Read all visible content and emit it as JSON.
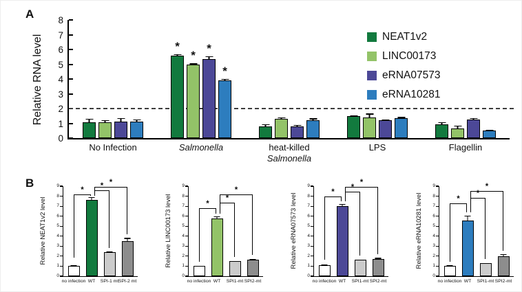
{
  "panels": {
    "a_label": "A",
    "b_label": "B"
  },
  "chart_data": [
    {
      "type": "bar",
      "panel": "A",
      "title": "",
      "xlabel": "",
      "ylabel": "Relative RNA level",
      "ylim": [
        0,
        8
      ],
      "yticks": [
        0,
        1,
        2,
        3,
        4,
        5,
        6,
        7,
        8
      ],
      "dashed_reference_line_y": 2,
      "grid": false,
      "legend_position": "upper right",
      "categories": [
        "No Infection",
        "Salmonella",
        "heat-killed Salmonella",
        "LPS",
        "Flagellin"
      ],
      "category_labels": [
        [
          {
            "text": "No Infection",
            "italic": false
          }
        ],
        [
          {
            "text": "Salmonella",
            "italic": true
          }
        ],
        [
          {
            "text": "heat-killed",
            "italic": false
          },
          {
            "text": "Salmonella",
            "italic": true
          }
        ],
        [
          {
            "text": "LPS",
            "italic": false
          }
        ],
        [
          {
            "text": "Flagellin",
            "italic": false
          }
        ]
      ],
      "series": [
        {
          "name": "NEAT1v2",
          "color": "#127a3e",
          "values": [
            1.05,
            5.6,
            0.8,
            1.5,
            0.95
          ],
          "errors": [
            0.3,
            0.12,
            0.2,
            0.1,
            0.18
          ]
        },
        {
          "name": "LINC00173",
          "color": "#93c368",
          "values": [
            1.05,
            5.0,
            1.3,
            1.4,
            0.65
          ],
          "errors": [
            0.22,
            0.1,
            0.15,
            0.3,
            0.25
          ]
        },
        {
          "name": "eRNA07573",
          "color": "#4c4897",
          "values": [
            1.1,
            5.35,
            0.8,
            1.2,
            1.25
          ],
          "errors": [
            0.3,
            0.25,
            0.15,
            0.12,
            0.15
          ]
        },
        {
          "name": "eRNA10281",
          "color": "#2d7dbe",
          "values": [
            1.1,
            3.9,
            1.2,
            1.35,
            0.5
          ],
          "errors": [
            0.2,
            0.15,
            0.18,
            0.12,
            0.12
          ]
        }
      ],
      "significance": {
        "starred_category_index": 1,
        "marker": "*"
      }
    },
    {
      "type": "bar",
      "panel": "B",
      "ylabel": "Relative NEAT1v2 level",
      "ylim": [
        0,
        9
      ],
      "yticks": [
        0,
        1,
        2,
        3,
        4,
        5,
        6,
        7,
        8,
        9
      ],
      "categories": [
        "no infection",
        "WT",
        "SPI-1 mt",
        "SPI-2 mt"
      ],
      "values": [
        1.0,
        7.6,
        2.4,
        3.5
      ],
      "errors": [
        0.15,
        0.4,
        0.15,
        0.4
      ],
      "bar_colors": [
        "#ffffff",
        "#127a3e",
        "#cbcbcb",
        "#8d8d8d"
      ],
      "brackets": [
        {
          "from": 0,
          "to": 1,
          "level": 8.15,
          "from_drop": 1.9,
          "to_drop": 8.05,
          "marker": "*"
        },
        {
          "from": 1,
          "to": 2,
          "level": 8.6,
          "from_drop": 8.05,
          "to_drop": 2.85,
          "marker": "*"
        },
        {
          "from": 1,
          "to": 3,
          "level": 8.9,
          "from_drop": 8.05,
          "to_drop": 4.2,
          "marker": "*"
        }
      ]
    },
    {
      "type": "bar",
      "panel": "B",
      "ylabel": "Relative LINC00173 level",
      "ylim": [
        0,
        9
      ],
      "yticks": [
        0,
        1,
        2,
        3,
        4,
        5,
        6,
        7,
        8,
        9
      ],
      "categories": [
        "no infection",
        "WT",
        "SPI1-mt",
        "SPI2-mt"
      ],
      "values": [
        1.0,
        5.8,
        1.5,
        1.65
      ],
      "errors": [
        0.1,
        0.25,
        0.1,
        0.15
      ],
      "bar_colors": [
        "#ffffff",
        "#93c368",
        "#cbcbcb",
        "#8d8d8d"
      ],
      "brackets": [
        {
          "from": 0,
          "to": 1,
          "level": 6.8,
          "from_drop": 1.5,
          "to_drop": 6.3,
          "marker": "*"
        },
        {
          "from": 1,
          "to": 2,
          "level": 7.35,
          "from_drop": 6.3,
          "to_drop": 1.95,
          "marker": "*"
        },
        {
          "from": 1,
          "to": 3,
          "level": 8.15,
          "from_drop": 6.3,
          "to_drop": 2.15,
          "marker": "*"
        }
      ]
    },
    {
      "type": "bar",
      "panel": "B",
      "ylabel": "Relative eRNA07573 level",
      "ylim": [
        0,
        9
      ],
      "yticks": [
        0,
        1,
        2,
        3,
        4,
        5,
        6,
        7,
        8,
        9
      ],
      "categories": [
        "no infection",
        "WT",
        "SPI1-mt",
        "SPI2-mt"
      ],
      "values": [
        1.1,
        7.0,
        1.65,
        1.7
      ],
      "errors": [
        0.15,
        0.3,
        0.1,
        0.2
      ],
      "bar_colors": [
        "#ffffff",
        "#4c4897",
        "#cbcbcb",
        "#8d8d8d"
      ],
      "brackets": [
        {
          "from": 0,
          "to": 1,
          "level": 8.0,
          "from_drop": 1.65,
          "to_drop": 7.55,
          "marker": "*"
        },
        {
          "from": 1,
          "to": 2,
          "level": 8.45,
          "from_drop": 7.55,
          "to_drop": 2.1,
          "marker": "*"
        },
        {
          "from": 1,
          "to": 3,
          "level": 8.95,
          "from_drop": 7.55,
          "to_drop": 2.25,
          "marker": "*"
        }
      ]
    },
    {
      "type": "bar",
      "panel": "B",
      "ylabel": "Relative eRNA10281 level",
      "ylim": [
        0,
        9
      ],
      "yticks": [
        0,
        1,
        2,
        3,
        4,
        5,
        6,
        7,
        8,
        9
      ],
      "categories": [
        "no infection",
        "WT",
        "SPI1-mt",
        "SPI2-mt"
      ],
      "values": [
        1.0,
        5.6,
        1.3,
        2.0
      ],
      "errors": [
        0.15,
        0.55,
        0.1,
        0.3
      ],
      "bar_colors": [
        "#ffffff",
        "#2d7dbe",
        "#cbcbcb",
        "#8d8d8d"
      ],
      "brackets": [
        {
          "from": 0,
          "to": 1,
          "level": 7.3,
          "from_drop": 1.5,
          "to_drop": 6.45,
          "marker": "*"
        },
        {
          "from": 1,
          "to": 2,
          "level": 7.85,
          "from_drop": 6.45,
          "to_drop": 1.75,
          "marker": "*"
        },
        {
          "from": 1,
          "to": 3,
          "level": 8.55,
          "from_drop": 6.45,
          "to_drop": 2.6,
          "marker": "*"
        }
      ]
    }
  ],
  "colors": {
    "neat1v2_green": "#127a3e",
    "linc00173_light_green": "#93c368",
    "erna07573_purple": "#4c4897",
    "erna10281_blue": "#2d7dbe",
    "spi1_gray": "#cbcbcb",
    "spi2_gray": "#8d8d8d",
    "axis_black": "#000000"
  }
}
